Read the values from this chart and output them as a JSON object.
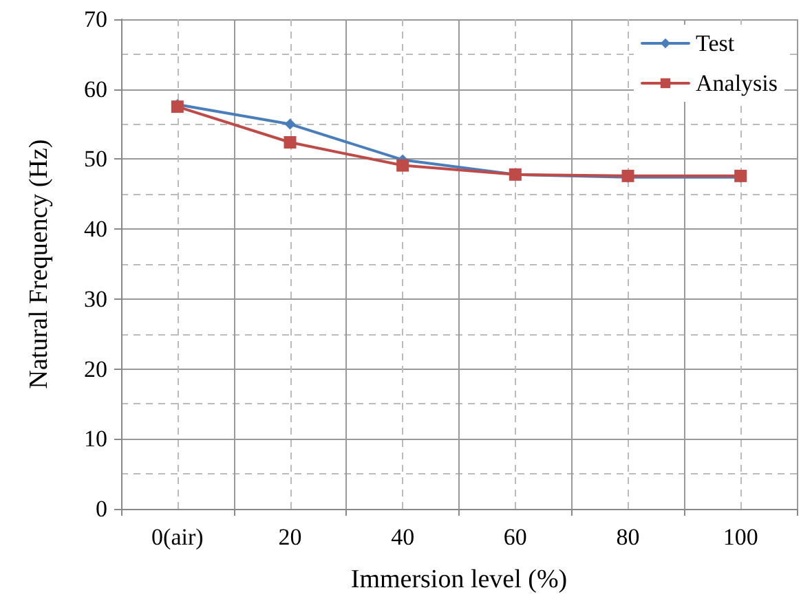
{
  "chart_data": {
    "type": "line",
    "xlabel": "Immersion level (%)",
    "ylabel": "Natural Frequency (Hz)",
    "categories": [
      "0(air)",
      "20",
      "40",
      "60",
      "80",
      "100"
    ],
    "series": [
      {
        "name": "Test",
        "color": "#4a7ebb",
        "marker": "diamond",
        "values": [
          57.8,
          55,
          49.9,
          47.8,
          47.4,
          47.4
        ]
      },
      {
        "name": "Analysis",
        "color": "#be4b48",
        "marker": "square",
        "values": [
          57.5,
          52.4,
          49.1,
          47.8,
          47.6,
          47.6
        ]
      }
    ],
    "ylim": [
      0,
      70
    ],
    "yticks": [
      0,
      10,
      20,
      30,
      40,
      50,
      60,
      70
    ],
    "grid": true,
    "legend": "top right",
    "line_style": "solid"
  }
}
